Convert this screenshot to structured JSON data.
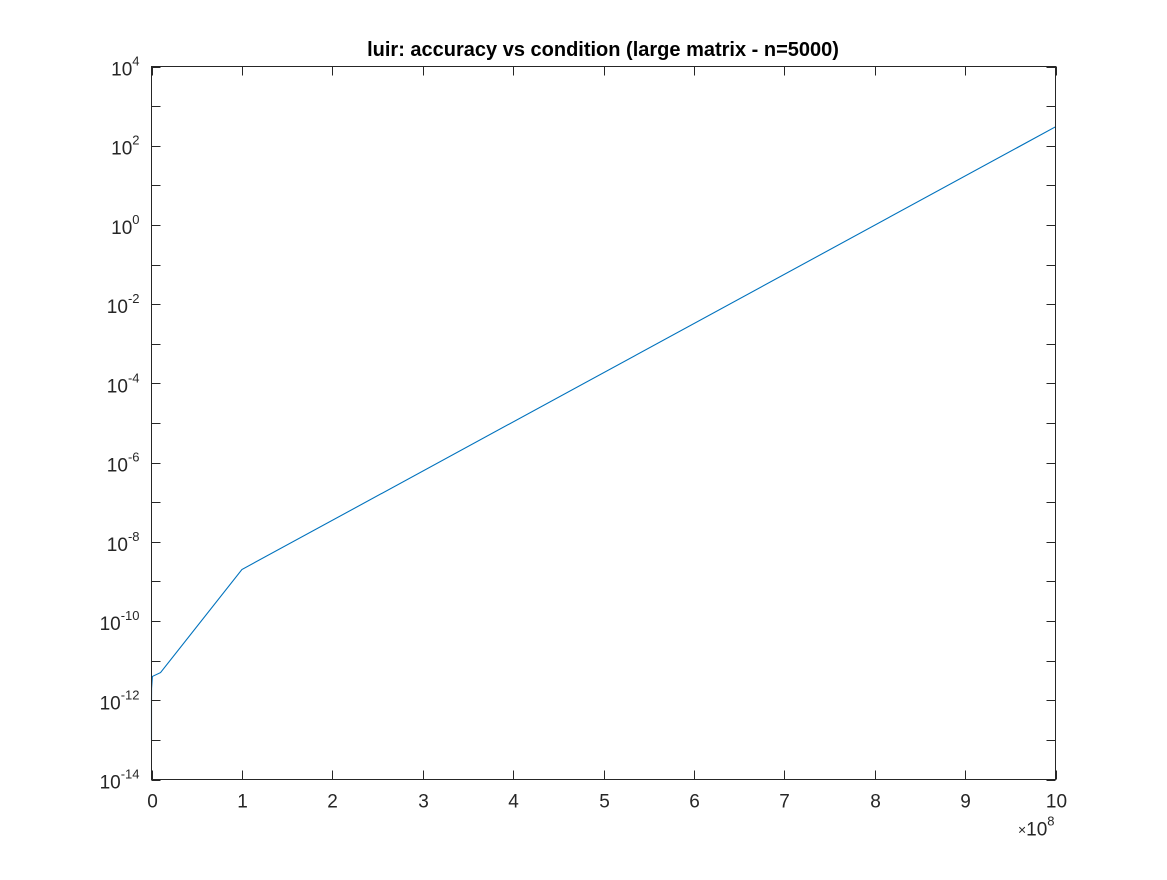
{
  "chart_data": {
    "type": "line",
    "title": "luir: accuracy vs condition (large matrix - n=5000)",
    "xlabel": "",
    "ylabel": "",
    "x_scale": "linear",
    "y_scale": "log",
    "xlim": [
      0,
      1000000000
    ],
    "ylim": [
      1e-14,
      10000
    ],
    "x_exponent_label": "10",
    "x_exponent_power": "8",
    "x_ticks": [
      {
        "value": 0,
        "label": "0"
      },
      {
        "value": 100000000,
        "label": "1"
      },
      {
        "value": 200000000,
        "label": "2"
      },
      {
        "value": 300000000,
        "label": "3"
      },
      {
        "value": 400000000,
        "label": "4"
      },
      {
        "value": 500000000,
        "label": "5"
      },
      {
        "value": 600000000,
        "label": "6"
      },
      {
        "value": 700000000,
        "label": "7"
      },
      {
        "value": 800000000,
        "label": "8"
      },
      {
        "value": 900000000,
        "label": "9"
      },
      {
        "value": 1000000000,
        "label": "10"
      }
    ],
    "y_ticks": [
      {
        "exp": 4,
        "base": "10",
        "power": "4"
      },
      {
        "exp": 2,
        "base": "10",
        "power": "2"
      },
      {
        "exp": 0,
        "base": "10",
        "power": "0"
      },
      {
        "exp": -2,
        "base": "10",
        "power": "-2"
      },
      {
        "exp": -4,
        "base": "10",
        "power": "-4"
      },
      {
        "exp": -6,
        "base": "10",
        "power": "-6"
      },
      {
        "exp": -8,
        "base": "10",
        "power": "-8"
      },
      {
        "exp": -10,
        "base": "10",
        "power": "-10"
      },
      {
        "exp": -12,
        "base": "10",
        "power": "-12"
      },
      {
        "exp": -14,
        "base": "10",
        "power": "-14"
      }
    ],
    "grid": false,
    "series": [
      {
        "color": "#0072BD",
        "x": [
          1,
          1000,
          100000,
          1000000,
          10000000,
          100000000,
          1000000000
        ],
        "y": [
          1e-13,
          1e-12,
          2e-12,
          4e-12,
          5e-12,
          2e-09,
          300
        ]
      }
    ]
  }
}
